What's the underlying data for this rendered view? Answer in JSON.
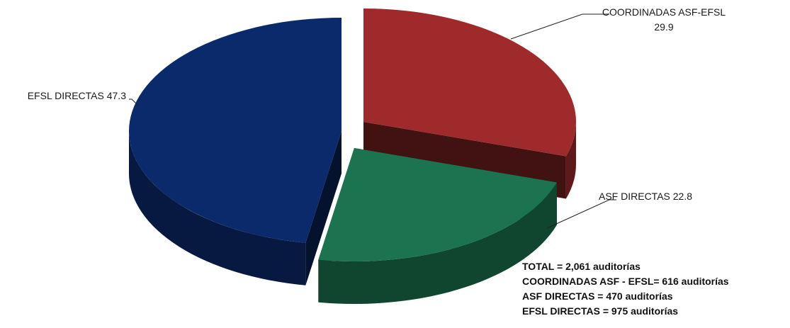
{
  "chart_data": {
    "type": "pie",
    "variant": "3d-exploded",
    "slices": [
      {
        "label": "COORDINADAS ASF-EFSL",
        "value": 29.9,
        "value_text": "29.9",
        "color": "#9e2a2b"
      },
      {
        "label": "ASF DIRECTAS",
        "value": 22.8,
        "value_text": "22.8",
        "color": "#1b7350"
      },
      {
        "label": "EFSL DIRECTAS",
        "value": 47.3,
        "value_text": "47.3",
        "color": "#0b2a6b"
      }
    ]
  },
  "summary": {
    "lines": [
      "TOTAL = 2,061 auditorías",
      "COORDINADAS ASF - EFSL= 616 auditorías",
      "ASF DIRECTAS = 470 auditorías",
      "EFSL DIRECTAS = 975 auditorías"
    ]
  }
}
